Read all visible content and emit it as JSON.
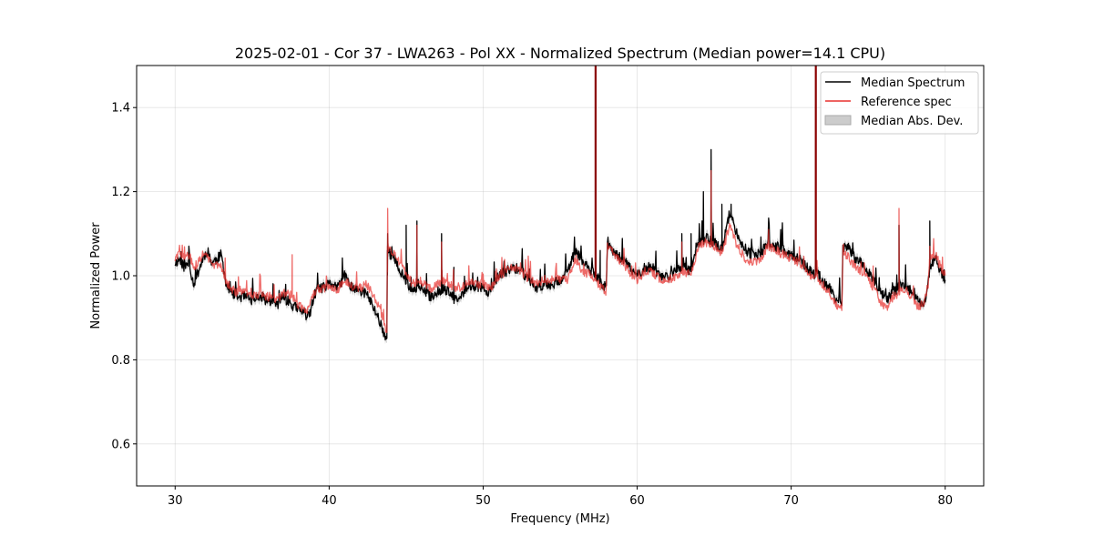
{
  "chart_data": {
    "type": "line",
    "title": "2025-02-01 - Cor 37 - LWA263 - Pol XX - Normalized Spectrum (Median power=14.1 CPU)",
    "xlabel": "Frequency (MHz)",
    "ylabel": "Normalized Power",
    "xlim": [
      27.5,
      82.5
    ],
    "ylim": [
      0.5,
      1.5
    ],
    "xticks": [
      30,
      40,
      50,
      60,
      70,
      80
    ],
    "xtick_labels": [
      "30",
      "40",
      "50",
      "60",
      "70",
      "80"
    ],
    "yticks": [
      0.6,
      0.8,
      1.0,
      1.2,
      1.4
    ],
    "ytick_labels": [
      "0.6",
      "0.8",
      "1.0",
      "1.2",
      "1.4"
    ],
    "grid": true,
    "legend_position": "top-right",
    "colors": {
      "median": "#000000",
      "reference": "#e8312e",
      "overlap": "#8b0000",
      "mad": "#aaaaaa"
    },
    "series": [
      {
        "name": "Median Spectrum",
        "x": [
          30.0,
          30.3,
          30.6,
          30.9,
          31.2,
          31.5,
          31.8,
          32.1,
          32.4,
          32.7,
          33.0,
          33.3,
          33.6,
          34.0,
          34.5,
          35.0,
          35.5,
          36.0,
          36.3,
          36.6,
          37.0,
          37.3,
          37.6,
          38.0,
          38.4,
          38.7,
          39.0,
          39.3,
          39.6,
          40.0,
          40.3,
          40.6,
          41.0,
          41.3,
          41.6,
          42.0,
          42.4,
          42.8,
          43.2,
          43.6,
          43.75,
          43.8,
          44.2,
          44.6,
          45.0,
          45.4,
          45.8,
          46.2,
          46.6,
          47.0,
          47.4,
          47.8,
          48.2,
          48.6,
          49.0,
          49.5,
          50.0,
          50.5,
          51.0,
          51.5,
          52.0,
          52.5,
          53.0,
          53.5,
          54.0,
          54.5,
          55.0,
          55.5,
          56.0,
          56.5,
          57.0,
          57.28,
          57.5,
          58.0,
          58.05,
          58.5,
          59.0,
          59.5,
          60.0,
          60.5,
          61.0,
          61.5,
          62.0,
          62.5,
          63.0,
          63.5,
          64.0,
          64.5,
          65.0,
          65.5,
          66.0,
          66.5,
          67.0,
          67.5,
          68.0,
          68.5,
          69.0,
          69.5,
          70.0,
          70.5,
          71.0,
          71.5,
          71.6,
          72.0,
          72.5,
          73.0,
          73.3,
          73.35,
          73.8,
          74.2,
          74.6,
          75.0,
          75.4,
          75.8,
          76.2,
          76.6,
          77.0,
          77.4,
          77.8,
          78.2,
          78.6,
          78.9,
          79.0,
          79.4,
          79.7,
          80.0
        ],
        "values": [
          1.03,
          1.04,
          1.02,
          1.03,
          0.98,
          1.01,
          1.04,
          1.06,
          1.03,
          1.04,
          1.05,
          0.98,
          0.96,
          0.95,
          0.95,
          0.94,
          0.95,
          0.94,
          0.94,
          0.93,
          0.95,
          0.94,
          0.93,
          0.92,
          0.91,
          0.9,
          0.95,
          0.97,
          0.97,
          0.98,
          0.98,
          0.97,
          1.0,
          0.98,
          0.97,
          0.96,
          0.96,
          0.93,
          0.9,
          0.86,
          0.85,
          1.06,
          1.04,
          1.01,
          0.99,
          0.96,
          0.98,
          0.96,
          0.95,
          0.96,
          0.97,
          0.96,
          0.94,
          0.95,
          0.98,
          0.97,
          0.97,
          0.96,
          1.0,
          1.01,
          1.02,
          1.01,
          0.99,
          0.97,
          0.98,
          0.98,
          0.99,
          1.01,
          1.06,
          1.03,
          1.01,
          1.0,
          0.99,
          0.97,
          1.07,
          1.06,
          1.04,
          1.02,
          1.0,
          1.02,
          1.02,
          1.0,
          1.0,
          1.01,
          1.02,
          1.01,
          1.08,
          1.09,
          1.08,
          1.06,
          1.15,
          1.1,
          1.06,
          1.05,
          1.05,
          1.08,
          1.07,
          1.06,
          1.05,
          1.04,
          1.02,
          1.0,
          1.01,
          0.99,
          0.97,
          0.94,
          0.93,
          1.07,
          1.06,
          1.04,
          1.03,
          1.01,
          0.99,
          0.96,
          0.94,
          0.96,
          0.97,
          0.98,
          0.96,
          0.94,
          0.93,
          0.98,
          1.02,
          1.04,
          1.01,
          0.99
        ],
        "spikes": [
          [
            43.8,
            1.1
          ],
          [
            45.0,
            1.12
          ],
          [
            45.7,
            1.13
          ],
          [
            47.3,
            1.1
          ],
          [
            48.1,
            1.02
          ],
          [
            57.3,
            1.5
          ],
          [
            57.6,
            1.06
          ],
          [
            62.9,
            1.1
          ],
          [
            63.5,
            1.1
          ],
          [
            64.3,
            1.2
          ],
          [
            64.8,
            1.3
          ],
          [
            65.5,
            1.17
          ],
          [
            66.1,
            1.17
          ],
          [
            71.6,
            1.5
          ],
          [
            77.0,
            1.12
          ],
          [
            79.0,
            1.13
          ]
        ]
      },
      {
        "name": "Reference spec",
        "x": [
          30.0,
          30.3,
          30.6,
          30.9,
          31.2,
          31.5,
          31.8,
          32.1,
          32.4,
          32.7,
          33.0,
          33.3,
          33.6,
          34.0,
          34.5,
          35.0,
          35.5,
          36.0,
          36.3,
          36.6,
          37.0,
          37.3,
          37.6,
          38.0,
          38.4,
          38.7,
          39.0,
          39.3,
          39.6,
          40.0,
          40.3,
          40.6,
          41.0,
          41.3,
          41.6,
          42.0,
          42.4,
          42.8,
          43.2,
          43.6,
          43.75,
          43.8,
          44.2,
          44.6,
          45.0,
          45.4,
          45.8,
          46.2,
          46.6,
          47.0,
          47.4,
          47.8,
          48.2,
          48.6,
          49.0,
          49.5,
          50.0,
          50.5,
          51.0,
          51.5,
          52.0,
          52.5,
          53.0,
          53.5,
          54.0,
          54.5,
          55.0,
          55.5,
          56.0,
          56.5,
          57.0,
          57.28,
          57.5,
          58.0,
          58.05,
          58.5,
          59.0,
          59.5,
          60.0,
          60.5,
          61.0,
          61.5,
          62.0,
          62.5,
          63.0,
          63.5,
          64.0,
          64.5,
          65.0,
          65.5,
          66.0,
          66.5,
          67.0,
          67.5,
          68.0,
          68.5,
          69.0,
          69.5,
          70.0,
          70.5,
          71.0,
          71.5,
          71.6,
          72.0,
          72.5,
          73.0,
          73.3,
          73.35,
          73.8,
          74.2,
          74.6,
          75.0,
          75.4,
          75.8,
          76.2,
          76.6,
          77.0,
          77.4,
          77.8,
          78.2,
          78.6,
          78.9,
          79.0,
          79.4,
          79.7,
          80.0
        ],
        "values": [
          1.04,
          1.05,
          1.04,
          1.05,
          1.02,
          1.03,
          1.05,
          1.05,
          1.02,
          1.03,
          1.02,
          0.99,
          0.97,
          0.96,
          0.96,
          0.95,
          0.96,
          0.95,
          0.95,
          0.94,
          0.96,
          0.96,
          0.95,
          0.93,
          0.92,
          0.92,
          0.96,
          0.97,
          0.97,
          0.97,
          0.97,
          0.97,
          0.99,
          0.98,
          0.97,
          0.97,
          0.98,
          0.96,
          0.93,
          0.88,
          0.87,
          1.07,
          1.05,
          1.03,
          1.01,
          0.98,
          0.99,
          0.98,
          0.97,
          0.98,
          0.99,
          0.98,
          0.97,
          0.97,
          0.99,
          0.98,
          0.98,
          0.97,
          1.0,
          1.01,
          1.02,
          1.01,
          0.99,
          0.98,
          0.99,
          0.99,
          0.99,
          0.99,
          1.04,
          1.01,
          1.0,
          0.99,
          0.98,
          0.96,
          1.07,
          1.05,
          1.03,
          1.01,
          0.99,
          1.01,
          1.01,
          0.99,
          0.99,
          1.0,
          1.01,
          1.0,
          1.07,
          1.08,
          1.07,
          1.05,
          1.12,
          1.07,
          1.04,
          1.03,
          1.04,
          1.07,
          1.06,
          1.05,
          1.04,
          1.03,
          1.01,
          0.99,
          1.0,
          0.98,
          0.96,
          0.93,
          0.92,
          1.06,
          1.04,
          1.02,
          1.01,
          0.99,
          0.97,
          0.94,
          0.92,
          0.95,
          0.96,
          0.97,
          0.95,
          0.93,
          0.93,
          0.98,
          1.04,
          1.05,
          1.02,
          1.0
        ],
        "spikes": [
          [
            37.6,
            1.05
          ],
          [
            43.8,
            1.16
          ],
          [
            45.7,
            1.12
          ],
          [
            47.3,
            1.08
          ],
          [
            50.8,
            1.01
          ],
          [
            57.3,
            1.5
          ],
          [
            62.9,
            1.08
          ],
          [
            64.8,
            1.25
          ],
          [
            71.6,
            1.5
          ],
          [
            77.0,
            1.16
          ],
          [
            79.0,
            1.07
          ]
        ]
      }
    ],
    "mad_band_width": 0.01,
    "legend": [
      {
        "label": "Median Spectrum",
        "kind": "line",
        "color": "#000000"
      },
      {
        "label": "Reference spec",
        "kind": "line",
        "color": "#e8312e"
      },
      {
        "label": "Median Abs. Dev.",
        "kind": "patch",
        "color": "#cccccc"
      }
    ]
  }
}
